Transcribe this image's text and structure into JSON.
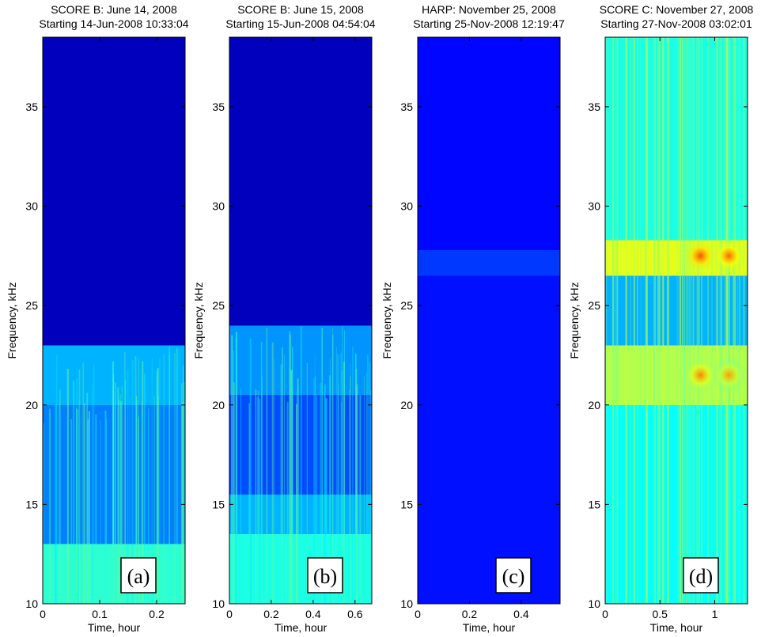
{
  "chart_data": [
    {
      "type": "heatmap",
      "title": "SCORE B: June 14, 2008",
      "subtitle": "Starting 14-Jun-2008 10:33:04",
      "xlabel": "Time, hour",
      "ylabel": "Frequency, kHz",
      "xlim": [
        0,
        0.25
      ],
      "ylim": [
        10,
        38.5
      ],
      "xticks": [
        0,
        0.1,
        0.2
      ],
      "xtick_labels": [
        "0",
        "0.1",
        "0.2"
      ],
      "yticks": [
        10,
        15,
        20,
        25,
        30,
        35
      ],
      "ytick_labels": [
        "10",
        "15",
        "20",
        "25",
        "30",
        "35"
      ],
      "colormap": "jet",
      "panel_label": "(a)",
      "description_bands": [
        {
          "from": 10,
          "to": 13,
          "level": 0.42
        },
        {
          "from": 13,
          "to": 20,
          "level": 0.25
        },
        {
          "from": 20,
          "to": 23,
          "level": 0.3
        },
        {
          "from": 23,
          "to": 38.5,
          "level": 0.06
        }
      ]
    },
    {
      "type": "heatmap",
      "title": "SCORE B: June 15, 2008",
      "subtitle": "Starting 15-Jun-2008 04:54:04",
      "xlabel": "Time, hour",
      "ylabel": "Frequency, kHz",
      "xlim": [
        0,
        0.68
      ],
      "ylim": [
        10,
        38.5
      ],
      "xticks": [
        0,
        0.2,
        0.4,
        0.6
      ],
      "xtick_labels": [
        "0",
        "0.2",
        "0.4",
        "0.6"
      ],
      "yticks": [
        10,
        15,
        20,
        25,
        30,
        35
      ],
      "ytick_labels": [
        "10",
        "15",
        "20",
        "25",
        "30",
        "35"
      ],
      "colormap": "jet",
      "panel_label": "(b)",
      "description_bands": [
        {
          "from": 10,
          "to": 13.5,
          "level": 0.4
        },
        {
          "from": 13.5,
          "to": 15.5,
          "level": 0.3
        },
        {
          "from": 15.5,
          "to": 20.5,
          "level": 0.2
        },
        {
          "from": 20.5,
          "to": 24,
          "level": 0.27
        },
        {
          "from": 24,
          "to": 38.5,
          "level": 0.06
        }
      ]
    },
    {
      "type": "heatmap",
      "title": "HARP: November 25, 2008",
      "subtitle": "Starting 25-Nov-2008 12:19:47",
      "xlabel": "Time, hour",
      "ylabel": "Frequency, kHz",
      "xlim": [
        0,
        0.55
      ],
      "ylim": [
        10,
        38.5
      ],
      "xticks": [
        0,
        0.2,
        0.4
      ],
      "xtick_labels": [
        "0",
        "0.2",
        "0.4"
      ],
      "yticks": [
        10,
        15,
        20,
        25,
        30,
        35
      ],
      "ytick_labels": [
        "10",
        "15",
        "20",
        "25",
        "30",
        "35"
      ],
      "colormap": "jet",
      "panel_label": "(c)",
      "description_bands": [
        {
          "from": 10,
          "to": 26.5,
          "level": 0.14
        },
        {
          "from": 26.5,
          "to": 27.8,
          "level": 0.18
        },
        {
          "from": 27.8,
          "to": 38.5,
          "level": 0.13
        }
      ]
    },
    {
      "type": "heatmap",
      "title": "SCORE C: November 27, 2008",
      "subtitle": "Starting 27-Nov-2008 03:02:01",
      "xlabel": "Time, hour",
      "ylabel": "Frequency, kHz",
      "xlim": [
        0,
        1.3
      ],
      "ylim": [
        10,
        38.5
      ],
      "xticks": [
        0,
        0.5,
        1
      ],
      "xtick_labels": [
        "0",
        "0.5",
        "1"
      ],
      "yticks": [
        10,
        15,
        20,
        25,
        30,
        35
      ],
      "ytick_labels": [
        "10",
        "15",
        "20",
        "25",
        "30",
        "35"
      ],
      "colormap": "jet",
      "panel_label": "(d)",
      "description_bands": [
        {
          "from": 10,
          "to": 20,
          "level": 0.38
        },
        {
          "from": 20,
          "to": 23,
          "level": 0.55
        },
        {
          "from": 23,
          "to": 26.5,
          "level": 0.3
        },
        {
          "from": 26.5,
          "to": 28.3,
          "level": 0.6
        },
        {
          "from": 28.3,
          "to": 38.5,
          "level": 0.4
        }
      ],
      "hotspots": [
        {
          "t": 0.87,
          "f": 27.5,
          "level": 0.8
        },
        {
          "t": 1.13,
          "f": 27.5,
          "level": 0.78
        },
        {
          "t": 0.87,
          "f": 21.5,
          "level": 0.75
        },
        {
          "t": 1.13,
          "f": 21.5,
          "level": 0.72
        }
      ]
    }
  ]
}
